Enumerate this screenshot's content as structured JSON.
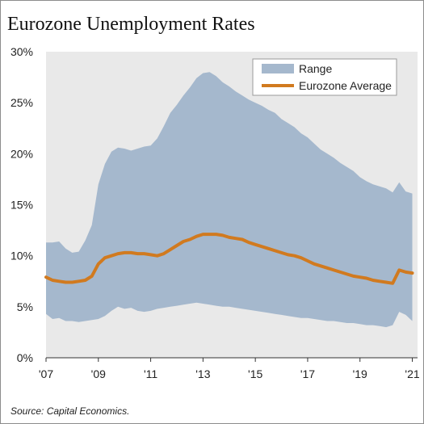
{
  "title": "Eurozone Unemployment Rates",
  "source": "Source: Capital Economics.",
  "colors": {
    "range": "#a5b8cd",
    "average": "#d17a1f",
    "plot_background": "#e9e9e9"
  },
  "chart_data": {
    "type": "area",
    "title": "Eurozone Unemployment Rates",
    "xlabel": "",
    "ylabel": "",
    "xlim": [
      2007,
      2021.2
    ],
    "ylim": [
      0,
      30
    ],
    "grid": false,
    "legend_position": "top-right",
    "x_ticks": [
      2007,
      2009,
      2011,
      2013,
      2015,
      2017,
      2019,
      2021
    ],
    "x_tick_labels": [
      "'07",
      "'09",
      "'11",
      "'13",
      "'15",
      "'17",
      "'19",
      "'21"
    ],
    "y_ticks": [
      0,
      5,
      10,
      15,
      20,
      25,
      30
    ],
    "y_tick_labels": [
      "0%",
      "5%",
      "10%",
      "15%",
      "20%",
      "25%",
      "30%"
    ],
    "legend": [
      "Range",
      "Eurozone Average"
    ],
    "x": [
      2007.0,
      2007.25,
      2007.5,
      2007.75,
      2008.0,
      2008.25,
      2008.5,
      2008.75,
      2009.0,
      2009.25,
      2009.5,
      2009.75,
      2010.0,
      2010.25,
      2010.5,
      2010.75,
      2011.0,
      2011.25,
      2011.5,
      2011.75,
      2012.0,
      2012.25,
      2012.5,
      2012.75,
      2013.0,
      2013.25,
      2013.5,
      2013.75,
      2014.0,
      2014.25,
      2014.5,
      2014.75,
      2015.0,
      2015.25,
      2015.5,
      2015.75,
      2016.0,
      2016.25,
      2016.5,
      2016.75,
      2017.0,
      2017.25,
      2017.5,
      2017.75,
      2018.0,
      2018.25,
      2018.5,
      2018.75,
      2019.0,
      2019.25,
      2019.5,
      2019.75,
      2020.0,
      2020.25,
      2020.5,
      2020.75,
      2021.0
    ],
    "series": [
      {
        "name": "Range",
        "type": "band",
        "lower": [
          4.3,
          3.8,
          3.9,
          3.6,
          3.6,
          3.5,
          3.6,
          3.7,
          3.8,
          4.1,
          4.6,
          5.0,
          4.8,
          4.9,
          4.6,
          4.5,
          4.6,
          4.8,
          4.9,
          5.0,
          5.1,
          5.2,
          5.3,
          5.4,
          5.3,
          5.2,
          5.1,
          5.0,
          5.0,
          4.9,
          4.8,
          4.7,
          4.6,
          4.5,
          4.4,
          4.3,
          4.2,
          4.1,
          4.0,
          3.9,
          3.9,
          3.8,
          3.7,
          3.6,
          3.6,
          3.5,
          3.4,
          3.4,
          3.3,
          3.2,
          3.2,
          3.1,
          3.0,
          3.2,
          4.5,
          4.2,
          3.6
        ],
        "upper": [
          11.3,
          11.3,
          11.4,
          10.7,
          10.3,
          10.4,
          11.5,
          13.0,
          17.0,
          19.0,
          20.2,
          20.6,
          20.5,
          20.3,
          20.5,
          20.7,
          20.8,
          21.5,
          22.7,
          24.0,
          24.8,
          25.7,
          26.5,
          27.4,
          27.9,
          28.0,
          27.6,
          27.0,
          26.6,
          26.1,
          25.7,
          25.3,
          25.0,
          24.7,
          24.3,
          24.0,
          23.4,
          23.0,
          22.6,
          22.0,
          21.6,
          21.0,
          20.4,
          20.0,
          19.6,
          19.1,
          18.7,
          18.3,
          17.7,
          17.3,
          17.0,
          16.8,
          16.6,
          16.2,
          17.2,
          16.3,
          16.1
        ]
      },
      {
        "name": "Eurozone Average",
        "type": "line",
        "values": [
          7.9,
          7.6,
          7.5,
          7.4,
          7.4,
          7.5,
          7.6,
          8.0,
          9.2,
          9.8,
          10.0,
          10.2,
          10.3,
          10.3,
          10.2,
          10.2,
          10.1,
          10.0,
          10.2,
          10.6,
          11.0,
          11.4,
          11.6,
          11.9,
          12.1,
          12.1,
          12.1,
          12.0,
          11.8,
          11.7,
          11.6,
          11.3,
          11.1,
          10.9,
          10.7,
          10.5,
          10.3,
          10.1,
          10.0,
          9.8,
          9.5,
          9.2,
          9.0,
          8.8,
          8.6,
          8.4,
          8.2,
          8.0,
          7.9,
          7.8,
          7.6,
          7.5,
          7.4,
          7.3,
          8.6,
          8.4,
          8.3
        ]
      }
    ]
  }
}
